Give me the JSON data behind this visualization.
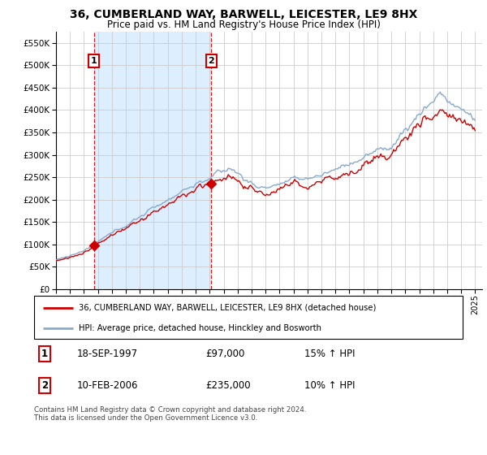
{
  "title": "36, CUMBERLAND WAY, BARWELL, LEICESTER, LE9 8HX",
  "subtitle": "Price paid vs. HM Land Registry's House Price Index (HPI)",
  "legend_line1": "36, CUMBERLAND WAY, BARWELL, LEICESTER, LE9 8HX (detached house)",
  "legend_line2": "HPI: Average price, detached house, Hinckley and Bosworth",
  "annotation1_label": "1",
  "annotation1_date": "18-SEP-1997",
  "annotation1_price": "£97,000",
  "annotation1_hpi": "15% ↑ HPI",
  "annotation2_label": "2",
  "annotation2_date": "10-FEB-2006",
  "annotation2_price": "£235,000",
  "annotation2_hpi": "10% ↑ HPI",
  "footnote": "Contains HM Land Registry data © Crown copyright and database right 2024.\nThis data is licensed under the Open Government Licence v3.0.",
  "sale1_year": 1997.72,
  "sale1_price": 97000,
  "sale2_year": 2006.11,
  "sale2_price": 235000,
  "property_color": "#cc0000",
  "hpi_color": "#88aacc",
  "shade_color": "#ddeeff",
  "ylim": [
    0,
    575000
  ],
  "yticks": [
    0,
    50000,
    100000,
    150000,
    200000,
    250000,
    300000,
    350000,
    400000,
    450000,
    500000,
    550000
  ],
  "background_color": "#ffffff",
  "grid_color": "#cccccc"
}
